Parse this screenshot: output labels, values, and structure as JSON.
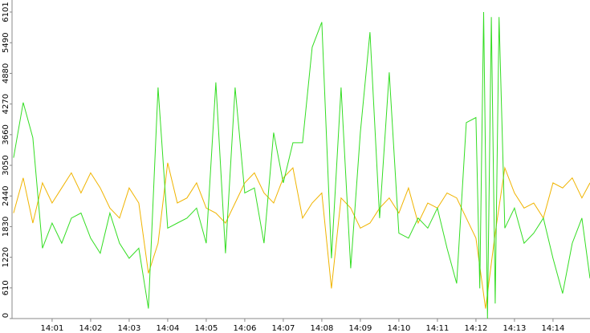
{
  "chart_data": {
    "type": "line",
    "xlim": [
      -0.04,
      14.96
    ],
    "ylim": [
      0,
      6101
    ],
    "yticks": [
      0,
      610,
      1220,
      1830,
      2440,
      3050,
      3660,
      4270,
      4880,
      5490,
      6101
    ],
    "xticks": [
      {
        "value": 1,
        "label": "14:01"
      },
      {
        "value": 2,
        "label": "14:02"
      },
      {
        "value": 3,
        "label": "14:03"
      },
      {
        "value": 4,
        "label": "14:04"
      },
      {
        "value": 5,
        "label": "14:05"
      },
      {
        "value": 6,
        "label": "14:06"
      },
      {
        "value": 7,
        "label": "14:07"
      },
      {
        "value": 8,
        "label": "14:08"
      },
      {
        "value": 9,
        "label": "14:09"
      },
      {
        "value": 10,
        "label": "14:10"
      },
      {
        "value": 11,
        "label": "14:11"
      },
      {
        "value": 12,
        "label": "14:12"
      },
      {
        "value": 13,
        "label": "14:13"
      },
      {
        "value": 14,
        "label": "14:14"
      }
    ],
    "series": [
      {
        "color": "#f0b400",
        "x": [
          0,
          0.25,
          0.5,
          0.75,
          1,
          1.25,
          1.5,
          1.75,
          2,
          2.25,
          2.5,
          2.75,
          3,
          3.25,
          3.5,
          3.75,
          4,
          4.25,
          4.5,
          4.75,
          5,
          5.25,
          5.5,
          5.75,
          6,
          6.25,
          6.5,
          6.75,
          7,
          7.25,
          7.5,
          7.75,
          8,
          8.25,
          8.5,
          8.75,
          9,
          9.25,
          9.5,
          9.75,
          10,
          10.25,
          10.5,
          10.75,
          11,
          11.25,
          11.5,
          11.75,
          12,
          12.25,
          12.5,
          12.75,
          13,
          13.25,
          13.5,
          13.75,
          14,
          14.25,
          14.5,
          14.75,
          14.96
        ],
        "values": [
          2100,
          2800,
          1900,
          2700,
          2300,
          2600,
          2900,
          2500,
          2900,
          2600,
          2200,
          2000,
          2600,
          2300,
          900,
          1500,
          3100,
          2300,
          2400,
          2700,
          2200,
          2100,
          1900,
          2300,
          2700,
          2900,
          2500,
          2300,
          2800,
          3000,
          2000,
          2300,
          2500,
          600,
          2400,
          2200,
          1800,
          1900,
          2200,
          2400,
          2100,
          2600,
          1900,
          2300,
          2200,
          2500,
          2400,
          2000,
          1600,
          200,
          1700,
          3000,
          2500,
          2200,
          2300,
          2000,
          2700,
          2600,
          2800,
          2400,
          2700
        ]
      },
      {
        "color": "#33dd22",
        "x": [
          0,
          0.25,
          0.5,
          0.75,
          1,
          1.25,
          1.5,
          1.75,
          2,
          2.25,
          2.5,
          2.75,
          3,
          3.25,
          3.5,
          3.75,
          4,
          4.25,
          4.5,
          4.75,
          5,
          5.25,
          5.5,
          5.75,
          6,
          6.25,
          6.5,
          6.75,
          7,
          7.25,
          7.5,
          7.75,
          8,
          8.25,
          8.5,
          8.75,
          9,
          9.25,
          9.5,
          9.75,
          10,
          10.25,
          10.5,
          10.75,
          11,
          11.25,
          11.5,
          11.75,
          12,
          12.1,
          12.2,
          12.3,
          12.4,
          12.5,
          12.6,
          12.75,
          13,
          13.25,
          13.5,
          13.75,
          14,
          14.25,
          14.5,
          14.75,
          14.96
        ],
        "values": [
          3200,
          4300,
          3600,
          1400,
          1900,
          1500,
          2000,
          2100,
          1600,
          1300,
          2100,
          1500,
          1200,
          1400,
          200,
          4600,
          1800,
          1900,
          2000,
          2200,
          1500,
          4700,
          1300,
          4600,
          2500,
          2600,
          1500,
          3700,
          2700,
          3500,
          3500,
          5400,
          5900,
          1200,
          4600,
          1000,
          3700,
          5700,
          2000,
          4900,
          1700,
          1600,
          2000,
          1800,
          2200,
          1400,
          700,
          3900,
          4000,
          600,
          6101,
          0,
          6000,
          300,
          6000,
          1800,
          2200,
          1500,
          1700,
          2000,
          1200,
          500,
          1500,
          2000,
          800
        ]
      }
    ]
  }
}
